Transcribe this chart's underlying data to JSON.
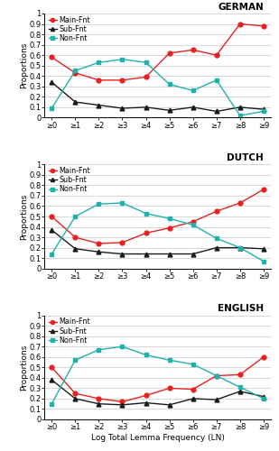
{
  "languages": [
    "GERMAN",
    "DUTCH",
    "ENGLISH"
  ],
  "x_labels": [
    "≥0",
    "≥1",
    "≥2",
    "≥3",
    "≥4",
    "≥5",
    "≥6",
    "≥7",
    "≥8",
    "≥9"
  ],
  "x_values": [
    0,
    1,
    2,
    3,
    4,
    5,
    6,
    7,
    8,
    9
  ],
  "series": {
    "GERMAN": {
      "Main-Fnt": [
        0.58,
        0.43,
        0.36,
        0.36,
        0.39,
        0.62,
        0.65,
        0.6,
        0.9,
        0.88
      ],
      "Sub-Fnt": [
        0.34,
        0.15,
        0.12,
        0.09,
        0.1,
        0.07,
        0.1,
        0.06,
        0.1,
        0.08
      ],
      "Non-Fnt": [
        0.09,
        0.45,
        0.53,
        0.56,
        0.53,
        0.32,
        0.26,
        0.36,
        0.02,
        0.06
      ]
    },
    "DUTCH": {
      "Main-Fnt": [
        0.5,
        0.3,
        0.24,
        0.25,
        0.34,
        0.39,
        0.45,
        0.55,
        0.63,
        0.76
      ],
      "Sub-Fnt": [
        0.37,
        0.19,
        0.16,
        0.14,
        0.14,
        0.14,
        0.14,
        0.2,
        0.2,
        0.19
      ],
      "Non-Fnt": [
        0.14,
        0.5,
        0.62,
        0.63,
        0.53,
        0.48,
        0.42,
        0.29,
        0.2,
        0.07
      ]
    },
    "ENGLISH": {
      "Main-Fnt": [
        0.5,
        0.25,
        0.2,
        0.17,
        0.23,
        0.3,
        0.29,
        0.42,
        0.43,
        0.6
      ],
      "Sub-Fnt": [
        0.38,
        0.2,
        0.15,
        0.14,
        0.16,
        0.14,
        0.2,
        0.19,
        0.27,
        0.22
      ],
      "Non-Fnt": [
        0.15,
        0.57,
        0.67,
        0.7,
        0.62,
        0.57,
        0.53,
        0.42,
        0.31,
        0.2
      ]
    }
  },
  "colors": {
    "Main-Fnt": "#e82020",
    "Sub-Fnt": "#1a1a1a",
    "Non-Fnt": "#20b2aa"
  },
  "markers": {
    "Main-Fnt": "o",
    "Sub-Fnt": "^",
    "Non-Fnt": "s"
  },
  "ylabel": "Proportions",
  "xlabel": "Log Total Lemma Frequency (LN)",
  "ylim": [
    0,
    1.0
  ],
  "yticks": [
    0,
    0.1,
    0.2,
    0.3,
    0.4,
    0.5,
    0.6,
    0.7,
    0.8,
    0.9,
    1
  ],
  "ytick_labels": [
    "0",
    "0.1",
    "0.2",
    "0.3",
    "0.4",
    "0.5",
    "0.6",
    "0.7",
    "0.8",
    "0.9",
    "1"
  ],
  "legend_order": [
    "Main-Fnt",
    "Sub-Fnt",
    "Non-Fnt"
  ]
}
